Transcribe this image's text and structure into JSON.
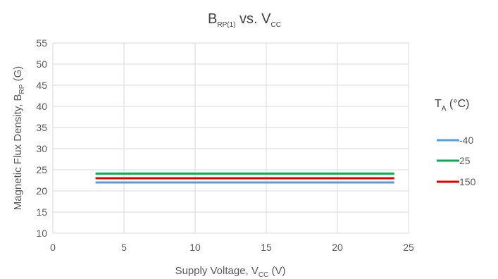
{
  "chart_data": {
    "type": "line",
    "title": {
      "main": "B",
      "sub": "RP(1)",
      "mid": " vs. V",
      "sub2": "CC"
    },
    "xlabel": {
      "pre": "Supply Voltage, V",
      "sub": "CC",
      "post": " (V)"
    },
    "ylabel": {
      "pre": "Magnetic Flux Density, B",
      "sub": "RP",
      "post": " (G)"
    },
    "xlim": [
      0,
      25
    ],
    "ylim": [
      10,
      55
    ],
    "xticks": [
      0,
      5,
      10,
      15,
      20,
      25
    ],
    "yticks": [
      10,
      15,
      20,
      25,
      30,
      35,
      40,
      45,
      50,
      55
    ],
    "grid": true,
    "legend": {
      "title": {
        "pre": "T",
        "sub": "A",
        "post": " (°C)"
      },
      "placement": "right"
    },
    "series": [
      {
        "name": "-40",
        "color": "#5B9BD5",
        "x": [
          3,
          24
        ],
        "y": [
          22.0,
          22.0
        ]
      },
      {
        "name": "25",
        "color": "#00B050",
        "x": [
          3,
          24
        ],
        "y": [
          24.1,
          24.1
        ]
      },
      {
        "name": "150",
        "color": "#E00000",
        "x": [
          3,
          24
        ],
        "y": [
          23.0,
          23.0
        ]
      }
    ]
  }
}
